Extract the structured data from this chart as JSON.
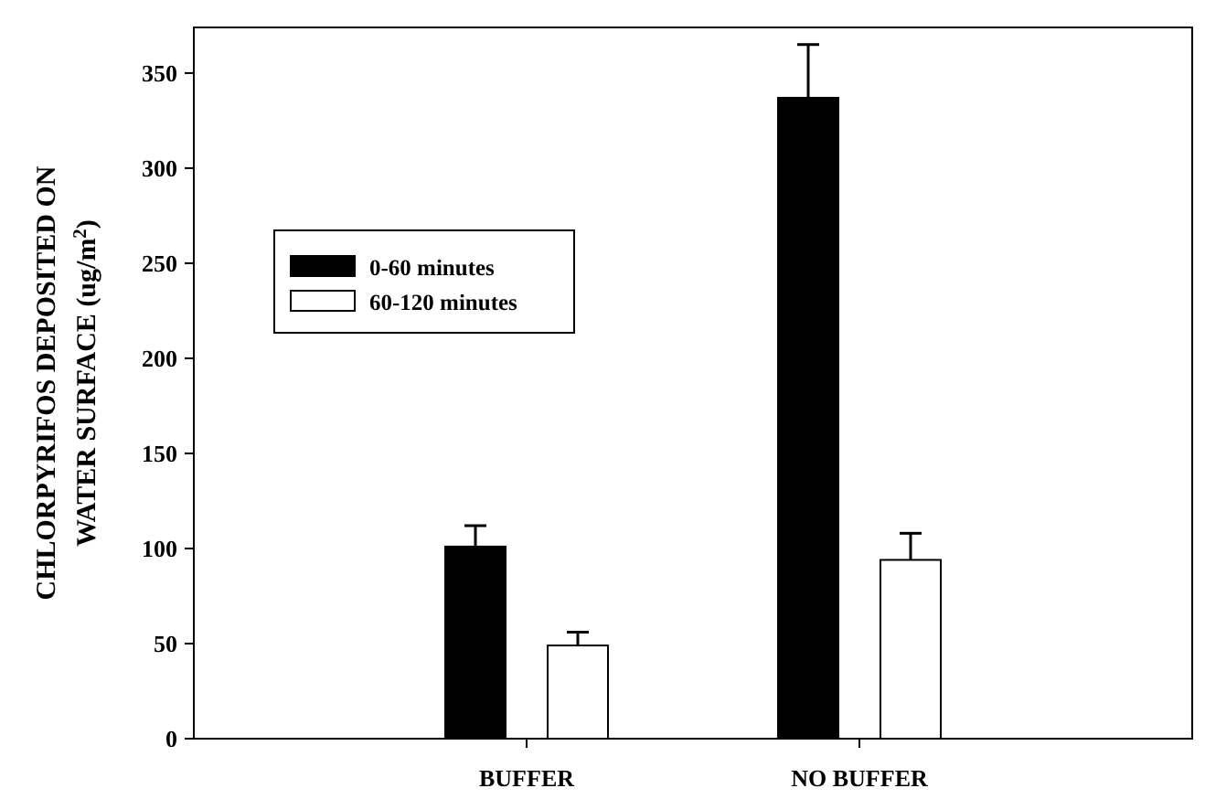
{
  "chart_data": {
    "type": "bar",
    "ylabel": "CHLORPYRIFOS DEPOSITED ON\nWATER SURFACE (ug/m$^{2}$)",
    "categories": [
      "BUFFER",
      "NO BUFFER"
    ],
    "series": [
      {
        "name": "0-60 minutes",
        "color": "#000000",
        "values": [
          101,
          337
        ],
        "errors": [
          11,
          28
        ]
      },
      {
        "name": "60-120 minutes",
        "color": "#ffffff",
        "values": [
          49,
          94
        ],
        "errors": [
          7,
          14
        ]
      }
    ],
    "ylim": [
      0,
      374
    ],
    "yticks": [
      0,
      50,
      100,
      150,
      200,
      250,
      300,
      350
    ],
    "legend": "top left",
    "grid": false
  }
}
